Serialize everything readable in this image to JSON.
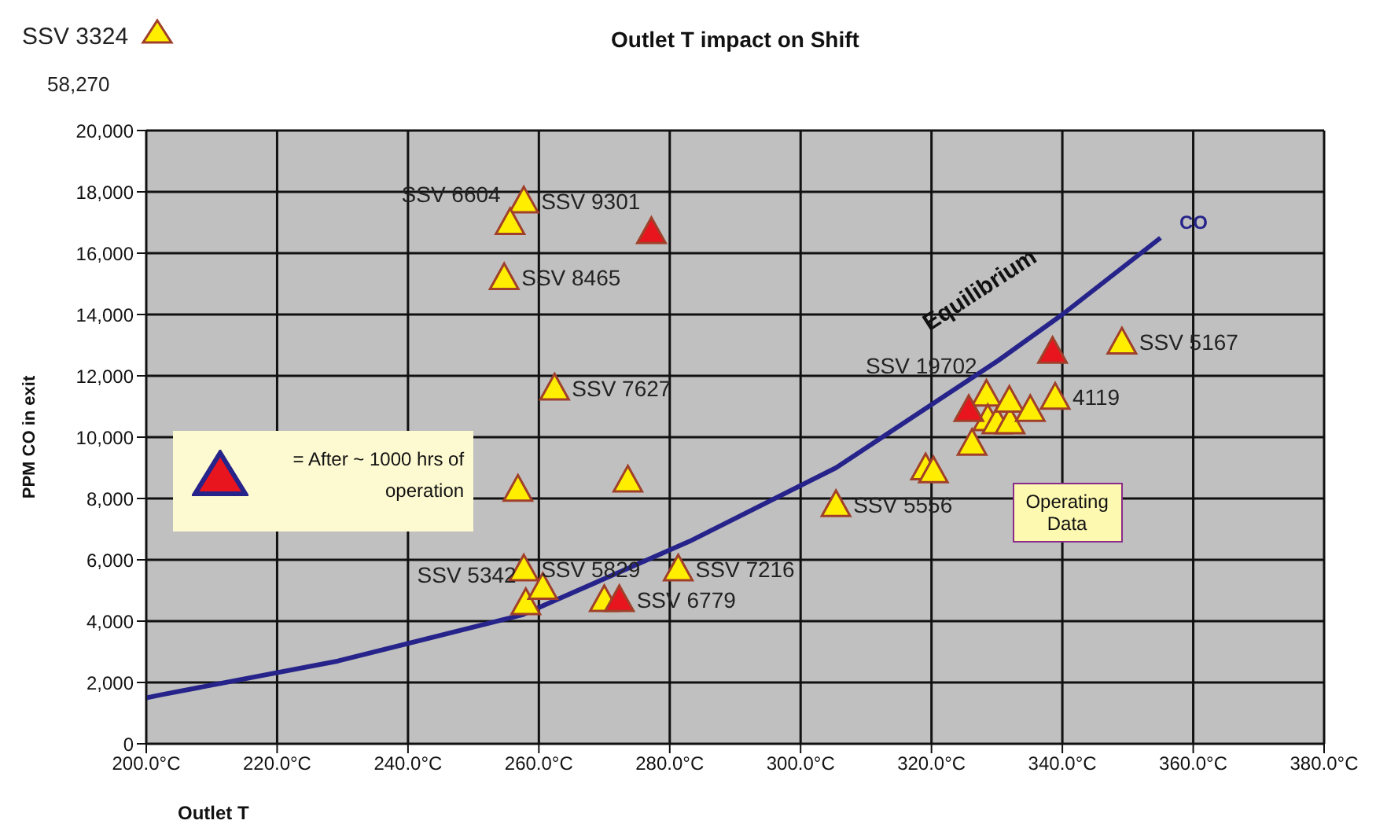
{
  "chart_data": {
    "type": "scatter",
    "title": "Outlet T impact on Shift",
    "xlabel": "Outlet T",
    "ylabel": "PPM CO in exit",
    "xlim": [
      200,
      380
    ],
    "xticks": [
      {
        "value": 200,
        "label": "200.0°C"
      },
      {
        "value": 220,
        "label": "220.0°C"
      },
      {
        "value": 240,
        "label": "240.0°C"
      },
      {
        "value": 260,
        "label": "260.0°C"
      },
      {
        "value": 280,
        "label": "280.0°C"
      },
      {
        "value": 300,
        "label": "300.0°C"
      },
      {
        "value": 320,
        "label": "320.0°C"
      },
      {
        "value": 340,
        "label": "340.0°C"
      },
      {
        "value": 360,
        "label": "360.0°C"
      },
      {
        "value": 380,
        "label": "380.0°C"
      }
    ],
    "ylim": [
      0,
      20000
    ],
    "yticks": [
      0,
      {
        "value": 2000,
        "label": "2,000"
      },
      {
        "value": 4000,
        "label": "4,000"
      },
      {
        "value": 6000,
        "label": "6,000"
      },
      {
        "value": 8000,
        "label": "8,000"
      },
      {
        "value": 10000,
        "label": "10,000"
      },
      {
        "value": 12000,
        "label": "12,000"
      },
      {
        "value": 14000,
        "label": "14,000"
      },
      {
        "value": 16000,
        "label": "16,000"
      },
      {
        "value": 18000,
        "label": "18,000"
      },
      {
        "value": 20000,
        "label": "20,000"
      }
    ],
    "grid": true,
    "legend": false,
    "marker": "triangle",
    "series": [
      {
        "color": "#ffee00",
        "x": [
          257.7,
          255.6,
          254.7,
          262.4,
          256.8,
          273.6,
          257.7,
          258,
          260.6,
          270,
          281.3,
          305.4,
          319.1,
          320.3,
          326.2,
          328.4,
          328.6,
          330,
          332,
          331.9,
          335.1,
          338.9,
          349.1
        ],
        "values": [
          17700,
          17000,
          15200,
          11600,
          8300,
          8600,
          5700,
          4600,
          5100,
          4700,
          5700,
          7800,
          9000,
          8900,
          9800,
          11400,
          10600,
          10500,
          10500,
          11200,
          10900,
          11300,
          13100
        ]
      },
      {
        "color": "#e8141e",
        "x": [
          277.2,
          272.3,
          325.7,
          338.5
        ],
        "values": [
          16700,
          4700,
          10900,
          12800
        ]
      },
      {
        "type": "line",
        "name": "CO",
        "marker": "none",
        "color": "#26248a",
        "x": [
          200,
          202.3,
          229.3,
          257.4,
          283,
          305.4,
          330.2,
          340,
          355
        ],
        "values": [
          1500,
          1600,
          2700,
          4200,
          6600,
          9000,
          12500,
          14000,
          16500
        ]
      }
    ],
    "annotations": [
      "SSV 3324",
      "58,270",
      "= After ~ 1000 hrs of operation",
      "Operating Data",
      "Equilibrium",
      {
        "text": "SSV 9301",
        "x": 257.7,
        "y": 17700
      },
      {
        "text": "SSV 6604",
        "x": 255.6,
        "y": 17000
      },
      {
        "text": "SSV 8465",
        "x": 254.7,
        "y": 15200
      },
      {
        "text": "SSV 7627",
        "x": 262.4,
        "y": 11600
      },
      {
        "text": "SSV 5829",
        "x": 257.7,
        "y": 5700
      },
      {
        "text": "SSV 5342",
        "x": 258,
        "y": 4600
      },
      {
        "text": "SSV 6779",
        "x": 272.3,
        "y": 4700
      },
      {
        "text": "SSV 7216",
        "x": 281.3,
        "y": 5700
      },
      {
        "text": "SSV 5556",
        "x": 305.4,
        "y": 7800
      },
      {
        "text": "SSV 19702",
        "x": 328.4,
        "y": 11400
      },
      {
        "text": "4119",
        "x": 338.9,
        "y": 11300
      },
      {
        "text": "SSV 5167",
        "x": 349.1,
        "y": 13100
      }
    ]
  }
}
